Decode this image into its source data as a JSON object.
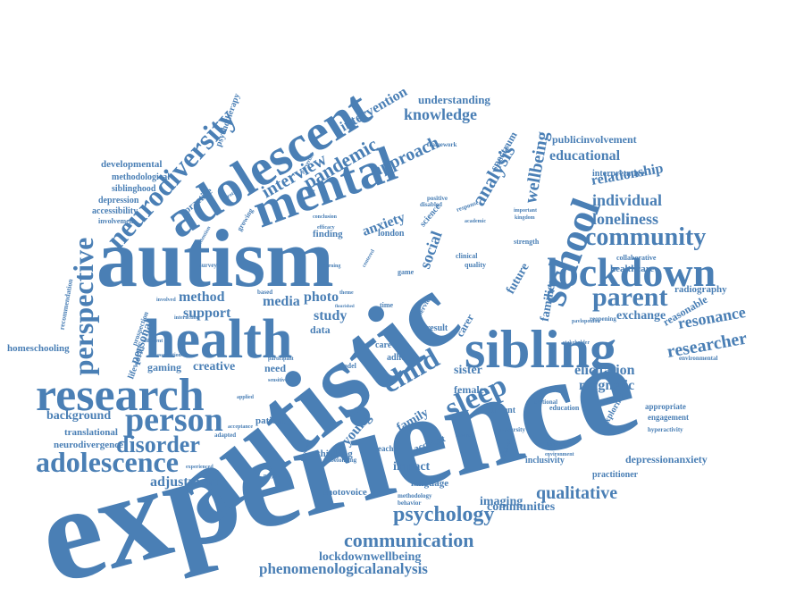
{
  "colors": {
    "word": "#4a7fb5",
    "background": "#ffffff"
  },
  "words": [
    {
      "text": "experience",
      "size": 150,
      "rot": -15
    },
    {
      "text": "autistic",
      "size": 118,
      "rot": -38
    },
    {
      "text": "autism",
      "size": 92,
      "rot": 0
    },
    {
      "text": "adolescent",
      "size": 58,
      "rot": -32
    },
    {
      "text": "health",
      "size": 62,
      "rot": 0
    },
    {
      "text": "sibling",
      "size": 60,
      "rot": 0
    },
    {
      "text": "mental",
      "size": 56,
      "rot": -20
    },
    {
      "text": "research",
      "size": 52,
      "rot": 0
    },
    {
      "text": "lockdown",
      "size": 46,
      "rot": 0
    },
    {
      "text": "school",
      "size": 46,
      "rot": -70
    },
    {
      "text": "person",
      "size": 38,
      "rot": 0
    },
    {
      "text": "adolescence",
      "size": 32,
      "rot": 0
    },
    {
      "text": "perspective",
      "size": 32,
      "rot": -90
    },
    {
      "text": "neurodiversity",
      "size": 32,
      "rot": -48
    },
    {
      "text": "sleep",
      "size": 34,
      "rot": -25
    },
    {
      "text": "child",
      "size": 32,
      "rot": -30
    },
    {
      "text": "parent",
      "size": 30,
      "rot": 0
    },
    {
      "text": "community",
      "size": 28,
      "rot": 0
    },
    {
      "text": "disorder",
      "size": 26,
      "rot": 0
    },
    {
      "text": "psychology",
      "size": 24,
      "rot": 0
    },
    {
      "text": "communication",
      "size": 22,
      "rot": 0
    },
    {
      "text": "researcher",
      "size": 20,
      "rot": -10
    },
    {
      "text": "resonance",
      "size": 18,
      "rot": -10
    },
    {
      "text": "pandemic",
      "size": 22,
      "rot": -30
    },
    {
      "text": "interview",
      "size": 20,
      "rot": -30
    },
    {
      "text": "knowledge",
      "size": 18,
      "rot": 0
    },
    {
      "text": "analysis",
      "size": 22,
      "rot": -60
    },
    {
      "text": "wellbeing",
      "size": 20,
      "rot": -80
    },
    {
      "text": "approach",
      "size": 20,
      "rot": -25
    },
    {
      "text": "intervention",
      "size": 16,
      "rot": -30
    },
    {
      "text": "understanding",
      "size": 13,
      "rot": 0
    },
    {
      "text": "loneliness",
      "size": 18,
      "rot": 0
    },
    {
      "text": "individual",
      "size": 18,
      "rot": 0
    },
    {
      "text": "relationship",
      "size": 16,
      "rot": -10
    },
    {
      "text": "educational",
      "size": 16,
      "rot": 0
    },
    {
      "text": "publicinvolvement",
      "size": 12,
      "rot": 0
    },
    {
      "text": "qualitative",
      "size": 20,
      "rot": 0
    },
    {
      "text": "phenomenologicalanalysis",
      "size": 17,
      "rot": 0
    },
    {
      "text": "lockdownwellbeing",
      "size": 14,
      "rot": 0
    },
    {
      "text": "communities",
      "size": 14,
      "rot": 0
    },
    {
      "text": "imaging",
      "size": 14,
      "rot": 0
    },
    {
      "text": "magnetic",
      "size": 16,
      "rot": 0
    },
    {
      "text": "elicitation",
      "size": 16,
      "rot": 0
    },
    {
      "text": "exchange",
      "size": 14,
      "rot": 0
    },
    {
      "text": "reasonable",
      "size": 12,
      "rot": -30
    },
    {
      "text": "radiography",
      "size": 11,
      "rot": 0
    },
    {
      "text": "healthcare",
      "size": 11,
      "rot": 0
    },
    {
      "text": "depressionanxiety",
      "size": 12,
      "rot": 0
    },
    {
      "text": "practitioner",
      "size": 10,
      "rot": 0
    },
    {
      "text": "inclusivity",
      "size": 10,
      "rot": 0
    },
    {
      "text": "photovoice",
      "size": 11,
      "rot": 0
    },
    {
      "text": "impact",
      "size": 14,
      "rot": 0
    },
    {
      "text": "language",
      "size": 11,
      "rot": 0
    },
    {
      "text": "adjustment",
      "size": 16,
      "rot": 0
    },
    {
      "text": "background",
      "size": 14,
      "rot": 0
    },
    {
      "text": "translational",
      "size": 11,
      "rot": 0
    },
    {
      "text": "neurodivergence",
      "size": 11,
      "rot": 0
    },
    {
      "text": "homeschooling",
      "size": 11,
      "rot": 0
    },
    {
      "text": "developmental",
      "size": 11,
      "rot": 0
    },
    {
      "text": "methodological",
      "size": 10,
      "rot": 0
    },
    {
      "text": "siblinghood",
      "size": 10,
      "rot": 0
    },
    {
      "text": "depression",
      "size": 10,
      "rot": 0
    },
    {
      "text": "accessibility",
      "size": 10,
      "rot": 0
    },
    {
      "text": "involvement",
      "size": 8,
      "rot": 0
    },
    {
      "text": "method",
      "size": 16,
      "rot": 0
    },
    {
      "text": "support",
      "size": 16,
      "rot": 0
    },
    {
      "text": "personal",
      "size": 14,
      "rot": -70
    },
    {
      "text": "lifeworld",
      "size": 10,
      "rot": -70
    },
    {
      "text": "gaming",
      "size": 12,
      "rot": 0
    },
    {
      "text": "creative",
      "size": 14,
      "rot": 0
    },
    {
      "text": "need",
      "size": 12,
      "rot": 0
    },
    {
      "text": "media",
      "size": 16,
      "rot": 0
    },
    {
      "text": "photo",
      "size": 16,
      "rot": 0
    },
    {
      "text": "study",
      "size": 16,
      "rot": 0
    },
    {
      "text": "data",
      "size": 12,
      "rot": 0
    },
    {
      "text": "anxiety",
      "size": 16,
      "rot": -20
    },
    {
      "text": "social",
      "size": 18,
      "rot": -70
    },
    {
      "text": "young",
      "size": 16,
      "rot": -50
    },
    {
      "text": "family",
      "size": 14,
      "rot": -30
    },
    {
      "text": "future",
      "size": 14,
      "rot": -60
    },
    {
      "text": "families",
      "size": 14,
      "rot": -80
    },
    {
      "text": "carer",
      "size": 12,
      "rot": -60
    },
    {
      "text": "sister",
      "size": 14,
      "rot": 0
    },
    {
      "text": "female",
      "size": 12,
      "rot": 0
    },
    {
      "text": "current",
      "size": 10,
      "rot": 0
    },
    {
      "text": "care",
      "size": 10,
      "rot": 0
    },
    {
      "text": "adhd",
      "size": 10,
      "rot": 0
    },
    {
      "text": "result",
      "size": 10,
      "rot": 0
    },
    {
      "text": "patient",
      "size": 11,
      "rot": 0
    },
    {
      "text": "thinking",
      "size": 11,
      "rot": 0
    },
    {
      "text": "account",
      "size": 11,
      "rot": -20
    },
    {
      "text": "teacher",
      "size": 9,
      "rot": 0
    },
    {
      "text": "spectrum",
      "size": 12,
      "rot": -60
    },
    {
      "text": "finding",
      "size": 11,
      "rot": 0
    },
    {
      "text": "london",
      "size": 10,
      "rot": 0
    },
    {
      "text": "science",
      "size": 10,
      "rot": -50
    },
    {
      "text": "clinical",
      "size": 8,
      "rot": 0
    },
    {
      "text": "quality",
      "size": 8,
      "rot": 0
    },
    {
      "text": "strength",
      "size": 8,
      "rot": 0
    },
    {
      "text": "collaborative",
      "size": 8,
      "rot": 0
    },
    {
      "text": "interpretative",
      "size": 10,
      "rot": 0
    },
    {
      "text": "appropriate",
      "size": 9,
      "rot": 0
    },
    {
      "text": "engagement",
      "size": 9,
      "rot": 0
    },
    {
      "text": "hyperactivity",
      "size": 7,
      "rot": 0
    },
    {
      "text": "education",
      "size": 8,
      "rot": 0
    },
    {
      "text": "environmental",
      "size": 7,
      "rot": 0
    },
    {
      "text": "exploring",
      "size": 10,
      "rot": -60
    },
    {
      "text": "psychotherapy",
      "size": 10,
      "rot": -70
    },
    {
      "text": "practice",
      "size": 11,
      "rot": -40
    },
    {
      "text": "growing",
      "size": 8,
      "rot": -60
    },
    {
      "text": "recommendation",
      "size": 8,
      "rot": -80
    },
    {
      "text": "prospection",
      "size": 8,
      "rot": -70
    },
    {
      "text": "adapted",
      "size": 7,
      "rot": 0
    },
    {
      "text": "sectional",
      "size": 7,
      "rot": 0
    },
    {
      "text": "university",
      "size": 7,
      "rot": 0
    },
    {
      "text": "reopening",
      "size": 7,
      "rot": 0
    },
    {
      "text": "methodology",
      "size": 7,
      "rot": 0
    },
    {
      "text": "behavior",
      "size": 7,
      "rot": 0
    },
    {
      "text": "belonging",
      "size": 7,
      "rot": 0
    },
    {
      "text": "framework",
      "size": 7,
      "rot": 0
    },
    {
      "text": "positive",
      "size": 7,
      "rot": 0
    },
    {
      "text": "disabled",
      "size": 7,
      "rot": 0
    },
    {
      "text": "response",
      "size": 7,
      "rot": -20
    },
    {
      "text": "academic",
      "size": 6,
      "rot": 0
    },
    {
      "text": "important",
      "size": 6,
      "rot": 0
    },
    {
      "text": "kingdom",
      "size": 6,
      "rot": 0
    },
    {
      "text": "pavlopoulou",
      "size": 6,
      "rot": 0
    },
    {
      "text": "stakeholder",
      "size": 6,
      "rot": 0
    },
    {
      "text": "disturbance",
      "size": 6,
      "rot": 0
    },
    {
      "text": "environment",
      "size": 6,
      "rot": 0
    },
    {
      "text": "involved",
      "size": 6,
      "rot": 0
    },
    {
      "text": "interaction",
      "size": 6,
      "rot": 0
    },
    {
      "text": "different",
      "size": 6,
      "rot": 0
    },
    {
      "text": "association",
      "size": 6,
      "rot": 0
    },
    {
      "text": "participant",
      "size": 6,
      "rot": 0
    },
    {
      "text": "sensitive",
      "size": 6,
      "rot": 0
    },
    {
      "text": "acceptance",
      "size": 6,
      "rot": 0
    },
    {
      "text": "experienced",
      "size": 6,
      "rot": 0
    },
    {
      "text": "applied",
      "size": 6,
      "rot": 0
    },
    {
      "text": "survey",
      "size": 7,
      "rot": 0
    },
    {
      "text": "attention",
      "size": 6,
      "rot": -60
    },
    {
      "text": "preverbal",
      "size": 6,
      "rot": -60
    },
    {
      "text": "conclusion",
      "size": 6,
      "rot": 0
    },
    {
      "text": "efficacy",
      "size": 6,
      "rot": 0
    },
    {
      "text": "learning",
      "size": 6,
      "rot": 0
    },
    {
      "text": "centered",
      "size": 6,
      "rot": -60
    },
    {
      "text": "game",
      "size": 8,
      "rot": 0
    },
    {
      "text": "service",
      "size": 8,
      "rot": -60
    },
    {
      "text": "time",
      "size": 8,
      "rot": 0
    },
    {
      "text": "model",
      "size": 8,
      "rot": 0
    },
    {
      "text": "based",
      "size": 7,
      "rot": 0
    },
    {
      "text": "project",
      "size": 6,
      "rot": 0
    },
    {
      "text": "emotional",
      "size": 6,
      "rot": -70
    },
    {
      "text": "condition",
      "size": 5,
      "rot": 0
    },
    {
      "text": "brother",
      "size": 6,
      "rot": -30
    },
    {
      "text": "highlighted",
      "size": 6,
      "rot": -70
    },
    {
      "text": "flourished",
      "size": 5,
      "rot": 0
    },
    {
      "text": "theme",
      "size": 6,
      "rot": 0
    },
    {
      "text": "activities",
      "size": 6,
      "rot": -70
    }
  ]
}
